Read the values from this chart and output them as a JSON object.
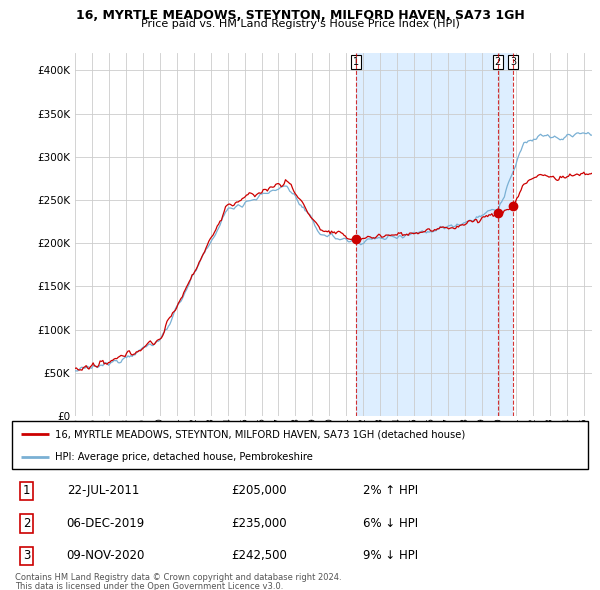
{
  "title1": "16, MYRTLE MEADOWS, STEYNTON, MILFORD HAVEN, SA73 1GH",
  "title2": "Price paid vs. HM Land Registry's House Price Index (HPI)",
  "legend_line1": "16, MYRTLE MEADOWS, STEYNTON, MILFORD HAVEN, SA73 1GH (detached house)",
  "legend_line2": "HPI: Average price, detached house, Pembrokeshire",
  "table": [
    {
      "num": "1",
      "date": "22-JUL-2011",
      "price": "£205,000",
      "hpi": "2% ↑ HPI"
    },
    {
      "num": "2",
      "date": "06-DEC-2019",
      "price": "£235,000",
      "hpi": "6% ↓ HPI"
    },
    {
      "num": "3",
      "date": "09-NOV-2020",
      "price": "£242,500",
      "hpi": "9% ↓ HPI"
    }
  ],
  "footnote1": "Contains HM Land Registry data © Crown copyright and database right 2024.",
  "footnote2": "This data is licensed under the Open Government Licence v3.0.",
  "sale_color": "#cc0000",
  "hpi_color": "#7ab0d4",
  "vline_color": "#cc0000",
  "shade_color": "#ddeeff",
  "ylim": [
    0,
    420000
  ],
  "yticks": [
    0,
    50000,
    100000,
    150000,
    200000,
    250000,
    300000,
    350000,
    400000
  ],
  "sale_dates": [
    2011.55,
    2019.92,
    2020.85
  ],
  "sale_prices": [
    205000,
    235000,
    242500
  ],
  "sale_labels": [
    "1",
    "2",
    "3"
  ]
}
